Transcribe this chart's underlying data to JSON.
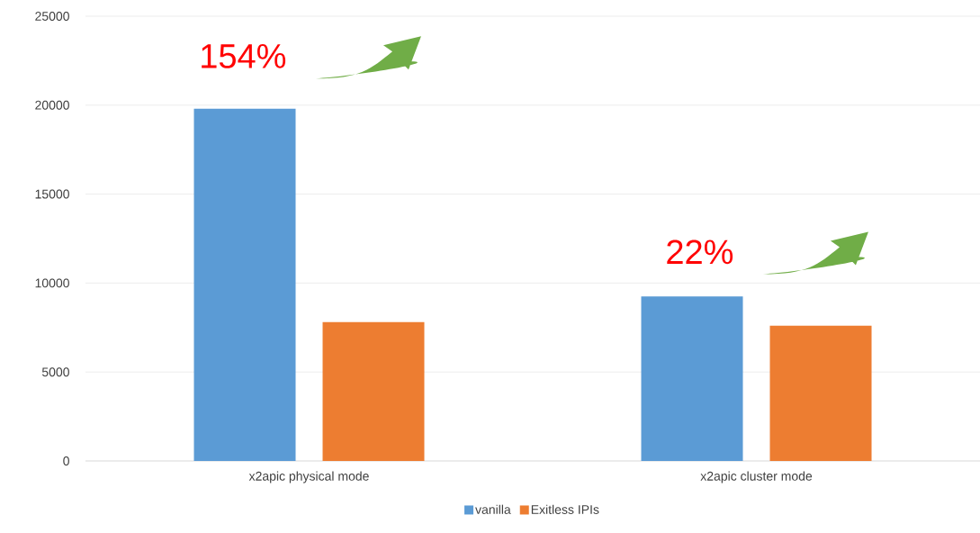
{
  "chart_data": {
    "type": "bar",
    "categories": [
      "x2apic physical mode",
      "x2apic cluster mode"
    ],
    "series": [
      {
        "name": "vanilla",
        "color": "#5b9bd5",
        "values": [
          19800,
          9250
        ]
      },
      {
        "name": "Exitless IPIs",
        "color": "#ed7d31",
        "values": [
          7800,
          7600
        ]
      }
    ],
    "ylim": [
      0,
      25000
    ],
    "yticks": [
      0,
      5000,
      10000,
      15000,
      20000,
      25000
    ],
    "grid": "y",
    "legend": "bottom",
    "annotations": [
      "154%",
      "22%"
    ]
  }
}
